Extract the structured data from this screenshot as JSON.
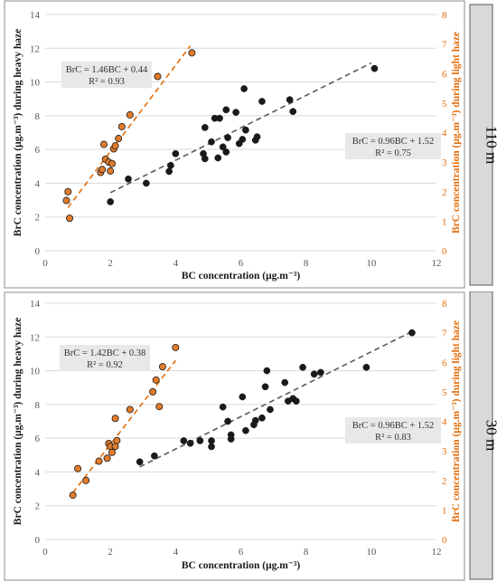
{
  "chart_data": [
    {
      "type": "scatter",
      "panel_label": "110 m",
      "xlabel": "BC concentration (μg.m⁻³)",
      "ylabel": "BrC concentration (μg.m⁻³) during heavy haze",
      "y2label": "BrC concentration (μg.m⁻³) during light haze",
      "xlim": [
        0,
        12
      ],
      "ylim": [
        0,
        14
      ],
      "y2lim": [
        0,
        8
      ],
      "xticks": [
        "0",
        "2",
        "4",
        "6",
        "8",
        "10",
        "12"
      ],
      "yticks": [
        "0",
        "2",
        "4",
        "6",
        "8",
        "10",
        "12",
        "14"
      ],
      "y2ticks": [
        "0",
        "1",
        "2",
        "3",
        "4",
        "5",
        "6",
        "7",
        "8"
      ],
      "grid": true,
      "series": [
        {
          "axis": "left",
          "color": "#1a1a1a",
          "points": [
            [
              2.0,
              2.9
            ],
            [
              2.55,
              4.25
            ],
            [
              3.1,
              4.0
            ],
            [
              3.8,
              4.7
            ],
            [
              3.85,
              5.05
            ],
            [
              4.0,
              5.75
            ],
            [
              4.85,
              5.75
            ],
            [
              4.9,
              5.45
            ],
            [
              4.9,
              7.3
            ],
            [
              5.1,
              6.45
            ],
            [
              5.2,
              7.85
            ],
            [
              5.3,
              5.5
            ],
            [
              5.35,
              7.85
            ],
            [
              5.45,
              6.15
            ],
            [
              5.55,
              5.85
            ],
            [
              5.55,
              8.35
            ],
            [
              5.6,
              6.7
            ],
            [
              5.85,
              8.2
            ],
            [
              5.95,
              6.35
            ],
            [
              6.05,
              6.6
            ],
            [
              6.1,
              9.6
            ],
            [
              6.15,
              7.15
            ],
            [
              6.45,
              6.55
            ],
            [
              6.5,
              6.75
            ],
            [
              6.65,
              8.85
            ],
            [
              7.5,
              8.95
            ],
            [
              7.6,
              8.25
            ],
            [
              10.1,
              10.8
            ]
          ],
          "trendline": {
            "x": [
              2.0,
              10.0
            ],
            "slope": 0.96,
            "intercept": 1.52
          },
          "equation": "BrC = 0.96BC + 1.52",
          "r2": "R² = 0.75"
        },
        {
          "axis": "right",
          "color": "#e07b2c",
          "points": [
            [
              0.65,
              1.7
            ],
            [
              0.7,
              2.0
            ],
            [
              0.75,
              1.1
            ],
            [
              1.7,
              2.65
            ],
            [
              1.75,
              2.75
            ],
            [
              1.8,
              3.6
            ],
            [
              1.85,
              3.1
            ],
            [
              1.95,
              3.0
            ],
            [
              2.0,
              2.7
            ],
            [
              2.05,
              2.95
            ],
            [
              2.1,
              3.45
            ],
            [
              2.15,
              3.55
            ],
            [
              2.25,
              3.8
            ],
            [
              2.35,
              4.2
            ],
            [
              2.6,
              4.6
            ],
            [
              3.45,
              5.9
            ],
            [
              4.5,
              6.7
            ]
          ],
          "trendline": {
            "x": [
              0.7,
              4.45
            ],
            "slope": 1.46,
            "intercept": 0.44
          },
          "equation": "BrC = 1.46BC + 0.44",
          "r2": "R² = 0.93"
        }
      ]
    },
    {
      "type": "scatter",
      "panel_label": "30 m",
      "xlabel": "BC concentration (μg.m⁻³)",
      "ylabel": "BrC concentration (μg.m⁻³) during heavy haze",
      "y2label": "BrC concentration (μg.m⁻³) during light haze",
      "xlim": [
        0,
        12
      ],
      "ylim": [
        0,
        14
      ],
      "y2lim": [
        0,
        8
      ],
      "xticks": [
        "0",
        "2",
        "4",
        "6",
        "8",
        "10",
        "12"
      ],
      "yticks": [
        "0",
        "2",
        "4",
        "6",
        "8",
        "10",
        "12",
        "14"
      ],
      "y2ticks": [
        "0",
        "1",
        "2",
        "3",
        "4",
        "5",
        "6",
        "7",
        "8"
      ],
      "grid": true,
      "series": [
        {
          "axis": "left",
          "color": "#1a1a1a",
          "points": [
            [
              2.9,
              4.6
            ],
            [
              3.35,
              4.95
            ],
            [
              4.25,
              5.85
            ],
            [
              4.45,
              5.7
            ],
            [
              4.75,
              5.85
            ],
            [
              5.1,
              5.85
            ],
            [
              5.1,
              5.5
            ],
            [
              5.45,
              7.85
            ],
            [
              5.6,
              7.0
            ],
            [
              5.7,
              5.95
            ],
            [
              5.7,
              6.2
            ],
            [
              6.05,
              8.45
            ],
            [
              6.15,
              6.45
            ],
            [
              6.4,
              6.8
            ],
            [
              6.45,
              7.05
            ],
            [
              6.65,
              7.2
            ],
            [
              6.75,
              9.05
            ],
            [
              6.8,
              10.0
            ],
            [
              6.9,
              7.7
            ],
            [
              7.35,
              9.3
            ],
            [
              7.45,
              8.2
            ],
            [
              7.6,
              8.35
            ],
            [
              7.7,
              8.2
            ],
            [
              7.9,
              10.2
            ],
            [
              8.25,
              9.8
            ],
            [
              8.45,
              9.9
            ],
            [
              9.85,
              10.2
            ],
            [
              11.25,
              12.25
            ]
          ],
          "trendline": {
            "x": [
              2.9,
              11.2
            ],
            "slope": 0.96,
            "intercept": 1.52
          },
          "equation": "BrC = 0.96BC + 1.52",
          "r2": "R² = 0.83"
        },
        {
          "axis": "right",
          "color": "#e07b2c",
          "points": [
            [
              0.85,
              1.5
            ],
            [
              1.0,
              2.4
            ],
            [
              1.25,
              2.0
            ],
            [
              1.65,
              2.65
            ],
            [
              1.9,
              2.75
            ],
            [
              1.95,
              3.25
            ],
            [
              2.0,
              3.15
            ],
            [
              2.05,
              2.95
            ],
            [
              2.15,
              4.1
            ],
            [
              2.15,
              3.15
            ],
            [
              2.2,
              3.35
            ],
            [
              2.6,
              4.4
            ],
            [
              3.3,
              5.0
            ],
            [
              3.4,
              5.4
            ],
            [
              3.5,
              4.5
            ],
            [
              3.6,
              5.85
            ],
            [
              4.0,
              6.5
            ]
          ],
          "trendline": {
            "x": [
              0.85,
              4.0
            ],
            "slope": 1.42,
            "intercept": 0.38
          },
          "equation": "BrC = 1.42BC + 0.38",
          "r2": "R² = 0.92"
        }
      ]
    }
  ]
}
